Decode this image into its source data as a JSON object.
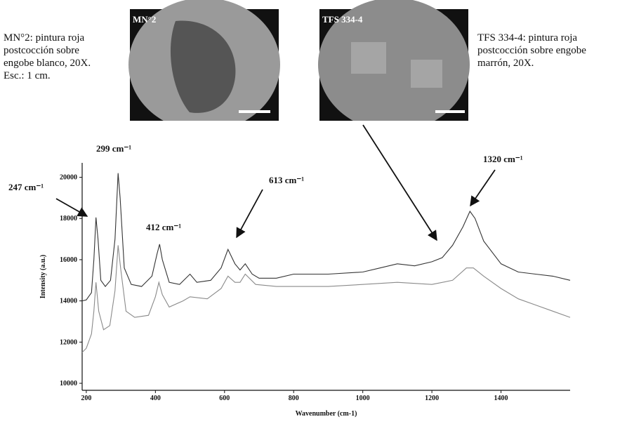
{
  "figure": {
    "images": [
      {
        "label": "MN°2",
        "caption": [
          "MN°2: pintura roja",
          "postcocción sobre",
          "engobe blanco, 20X.",
          "Esc.: 1 cm."
        ]
      },
      {
        "label": "TFS 334-4",
        "caption": [
          "TFS 334-4: pintura roja",
          "postcocción sobre engobe",
          "marrón, 20X."
        ]
      }
    ]
  },
  "chart_data": {
    "type": "line",
    "x_label": "Wavenumber (cm-1)",
    "y_label": "Intensity (a.u.)",
    "annotations": [
      "299 cm⁻¹",
      "247 cm⁻¹",
      "412 cm⁻¹",
      "613 cm⁻¹",
      "1320 cm⁻¹"
    ],
    "xlim": [
      188,
      1600
    ],
    "ylim": [
      9660,
      20700
    ],
    "xticks": [
      200,
      400,
      600,
      800,
      1000,
      1200,
      1400
    ],
    "yticks": [
      10000,
      12000,
      14000,
      16000,
      18000,
      20000
    ],
    "series": [
      {
        "color": "#333333",
        "x": [
          188,
          200,
          215,
          222,
          228,
          234,
          242,
          255,
          270,
          283,
          292,
          298,
          310,
          330,
          360,
          390,
          405,
          412,
          420,
          440,
          470,
          500,
          520,
          560,
          590,
          610,
          630,
          645,
          660,
          680,
          700,
          750,
          800,
          900,
          1000,
          1050,
          1100,
          1150,
          1200,
          1230,
          1260,
          1290,
          1310,
          1325,
          1350,
          1400,
          1450,
          1500,
          1550,
          1600
        ],
        "values": [
          14000,
          14050,
          14400,
          16000,
          18050,
          17000,
          15000,
          14700,
          15000,
          17000,
          20200,
          19000,
          15600,
          14800,
          14700,
          15200,
          16300,
          16750,
          16000,
          14900,
          14800,
          15300,
          14900,
          15000,
          15600,
          16500,
          15800,
          15500,
          15800,
          15300,
          15100,
          15100,
          15300,
          15300,
          15400,
          15600,
          15800,
          15700,
          15900,
          16100,
          16700,
          17600,
          18350,
          18000,
          16900,
          15800,
          15400,
          15300,
          15200,
          15000
        ]
      },
      {
        "color": "#8a8a8a",
        "x": [
          188,
          200,
          215,
          222,
          228,
          236,
          250,
          268,
          283,
          292,
          300,
          315,
          340,
          380,
          400,
          410,
          420,
          440,
          480,
          500,
          550,
          590,
          610,
          630,
          645,
          660,
          690,
          750,
          800,
          900,
          1000,
          1100,
          1200,
          1260,
          1300,
          1320,
          1350,
          1400,
          1450,
          1500,
          1550,
          1600
        ],
        "values": [
          11500,
          11700,
          12400,
          13500,
          14900,
          13500,
          12600,
          12800,
          14500,
          16700,
          15500,
          13500,
          13200,
          13300,
          14200,
          14900,
          14300,
          13700,
          14000,
          14200,
          14100,
          14600,
          15200,
          14900,
          14900,
          15300,
          14800,
          14700,
          14700,
          14700,
          14800,
          14900,
          14800,
          15000,
          15600,
          15600,
          15200,
          14600,
          14100,
          13800,
          13500,
          13200
        ]
      }
    ]
  }
}
